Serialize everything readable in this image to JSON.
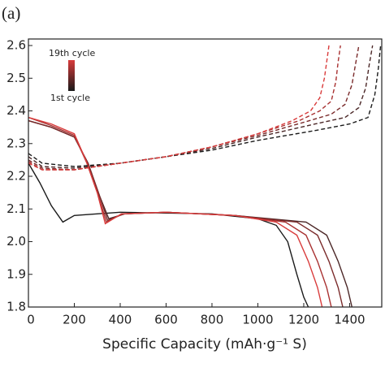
{
  "chart_data": {
    "type": "line",
    "panel_label": "(a)",
    "x_label": "Specific Capacity (mAh·g⁻¹ S)",
    "xlim": [
      0,
      1540
    ],
    "ylim": [
      1.8,
      2.62
    ],
    "xticks": [
      0,
      200,
      400,
      600,
      800,
      1000,
      1200,
      1400
    ],
    "yticks": [
      1.8,
      1.9,
      {
        "value": 2,
        "label": "2.0"
      },
      2.1,
      2.2,
      2.3,
      2.4,
      2.5,
      2.6
    ],
    "legend": {
      "labels": [
        "19th cycle",
        "1st cycle"
      ],
      "colors": [
        "#d93b3b",
        "#1a1a1a"
      ]
    },
    "series": [
      {
        "color": "#1a1a1a",
        "line_style": "solid",
        "x": [
          0,
          50,
          100,
          150,
          200,
          400,
          800,
          1000,
          1080,
          1130,
          1170,
          1200,
          1220
        ],
        "values": [
          2.24,
          2.18,
          2.11,
          2.06,
          2.08,
          2.09,
          2.085,
          2.07,
          2.05,
          2.0,
          1.9,
          1.83,
          1.8
        ]
      },
      {
        "color": "#4a2626",
        "line_style": "solid",
        "x": [
          0,
          100,
          200,
          260,
          310,
          350,
          420,
          600,
          900,
          1210,
          1300,
          1350,
          1390,
          1410
        ],
        "values": [
          2.37,
          2.35,
          2.32,
          2.24,
          2.14,
          2.07,
          2.085,
          2.09,
          2.08,
          2.06,
          2.02,
          1.94,
          1.86,
          1.8
        ]
      },
      {
        "color": "#7a2a2a",
        "line_style": "solid",
        "x": [
          0,
          100,
          200,
          260,
          310,
          345,
          415,
          600,
          900,
          1170,
          1260,
          1310,
          1350,
          1370
        ],
        "values": [
          2.37,
          2.35,
          2.32,
          2.24,
          2.14,
          2.065,
          2.085,
          2.09,
          2.08,
          2.06,
          2.02,
          1.94,
          1.86,
          1.8
        ]
      },
      {
        "color": "#a83030",
        "line_style": "solid",
        "x": [
          0,
          100,
          200,
          255,
          305,
          340,
          410,
          600,
          900,
          1120,
          1210,
          1260,
          1300,
          1320
        ],
        "values": [
          2.38,
          2.355,
          2.325,
          2.24,
          2.14,
          2.06,
          2.085,
          2.09,
          2.08,
          2.06,
          2.02,
          1.94,
          1.86,
          1.8
        ]
      },
      {
        "color": "#d93b3b",
        "line_style": "solid",
        "x": [
          0,
          100,
          200,
          250,
          300,
          335,
          405,
          600,
          900,
          1080,
          1170,
          1220,
          1260,
          1280
        ],
        "values": [
          2.38,
          2.36,
          2.33,
          2.25,
          2.15,
          2.055,
          2.085,
          2.09,
          2.08,
          2.06,
          2.02,
          1.94,
          1.86,
          1.8
        ]
      },
      {
        "color": "#1a1a1a",
        "line_style": "dashed",
        "x": [
          0,
          60,
          200,
          400,
          600,
          800,
          1000,
          1250,
          1400,
          1480,
          1510,
          1525,
          1535
        ],
        "values": [
          2.27,
          2.24,
          2.23,
          2.24,
          2.26,
          2.28,
          2.31,
          2.34,
          2.36,
          2.38,
          2.45,
          2.53,
          2.6
        ]
      },
      {
        "color": "#4a2626",
        "line_style": "dashed",
        "x": [
          0,
          60,
          200,
          400,
          600,
          800,
          1000,
          1250,
          1380,
          1440,
          1470,
          1485,
          1500
        ],
        "values": [
          2.26,
          2.23,
          2.225,
          2.24,
          2.26,
          2.285,
          2.32,
          2.36,
          2.38,
          2.41,
          2.47,
          2.54,
          2.6
        ]
      },
      {
        "color": "#7a2a2a",
        "line_style": "dashed",
        "x": [
          0,
          60,
          200,
          400,
          600,
          800,
          1000,
          1200,
          1320,
          1380,
          1410,
          1425,
          1440
        ],
        "values": [
          2.25,
          2.225,
          2.22,
          2.24,
          2.26,
          2.29,
          2.325,
          2.365,
          2.39,
          2.42,
          2.48,
          2.54,
          2.6
        ]
      },
      {
        "color": "#a83030",
        "line_style": "dashed",
        "x": [
          0,
          60,
          200,
          400,
          600,
          800,
          1000,
          1180,
          1270,
          1320,
          1340,
          1350,
          1360
        ],
        "values": [
          2.245,
          2.22,
          2.22,
          2.24,
          2.26,
          2.29,
          2.33,
          2.37,
          2.4,
          2.43,
          2.49,
          2.55,
          2.6
        ]
      },
      {
        "color": "#d93b3b",
        "line_style": "dashed",
        "x": [
          0,
          60,
          200,
          400,
          600,
          800,
          1000,
          1150,
          1230,
          1270,
          1290,
          1300,
          1310
        ],
        "values": [
          2.24,
          2.22,
          2.22,
          2.24,
          2.26,
          2.29,
          2.33,
          2.37,
          2.4,
          2.44,
          2.5,
          2.55,
          2.6
        ]
      }
    ]
  }
}
